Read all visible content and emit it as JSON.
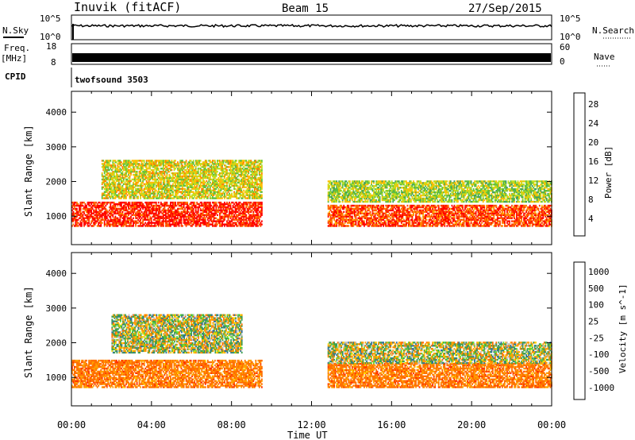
{
  "header": {
    "station": "Inuvik (fitACF)",
    "beam": "Beam 15",
    "date": "27/Sep/2015"
  },
  "top_panels": {
    "nsky_label": "N.Sky",
    "nsky_ticks": [
      "10^5",
      "10^0"
    ],
    "nsearch_label": "N.Search",
    "nsearch_ticks": [
      "10^5",
      "10^0"
    ],
    "freq_label": "Freq.",
    "freq_unit": "[MHz]",
    "freq_ticks": [
      "18",
      "8"
    ],
    "nave_label": "Nave",
    "nave_ticks": [
      "60",
      "0"
    ],
    "cpid_label": "CPID",
    "cpid_value": "twofsound 3503"
  },
  "colors": {
    "power_scale": [
      "#1f1fff",
      "#2f3fbf",
      "#3f6f9f",
      "#3f9f5f",
      "#5fbf3f",
      "#bfdf1f",
      "#ffbf00",
      "#ff7f00",
      "#ff3f00",
      "#ff0000"
    ],
    "velocity_scale": [
      "#1f3fbf",
      "#2f6f9f",
      "#3f9f4f",
      "#5fdf2f",
      "#bfbfbf",
      "#ffdf00",
      "#ffa000",
      "#ff7000",
      "#ff3000",
      "#ff0000"
    ]
  },
  "chart_data": [
    {
      "type": "heatmap",
      "name": "Power",
      "xlabel": "",
      "ylabel": "Slant Range [km]",
      "xlim": [
        0,
        24
      ],
      "ylim": [
        180,
        4600
      ],
      "yticks": [
        1000,
        2000,
        3000,
        4000
      ],
      "colorbar": {
        "label": "Power [dB]",
        "ticks": [
          "4",
          "8",
          "12",
          "16",
          "20",
          "24",
          "28"
        ],
        "range": [
          0,
          30
        ]
      },
      "echo_bands_hours_km": [
        {
          "start": 0.0,
          "end": 9.5,
          "range": [
            700,
            1400
          ],
          "value": 26
        },
        {
          "start": 1.5,
          "end": 9.5,
          "range": [
            1500,
            2600
          ],
          "value": 16
        },
        {
          "start": 12.8,
          "end": 24.0,
          "range": [
            700,
            1300
          ],
          "value": 24
        },
        {
          "start": 12.8,
          "end": 24.0,
          "range": [
            1400,
            2000
          ],
          "value": 14
        }
      ]
    },
    {
      "type": "heatmap",
      "name": "Velocity",
      "xlabel": "Time UT",
      "ylabel": "Slant Range [km]",
      "xlim": [
        0,
        24
      ],
      "ylim": [
        180,
        4600
      ],
      "xticks": [
        "00:00",
        "04:00",
        "08:00",
        "12:00",
        "16:00",
        "20:00",
        "00:00"
      ],
      "yticks": [
        1000,
        2000,
        3000,
        4000
      ],
      "colorbar": {
        "label": "Velocity [m s^-1]",
        "ticks": [
          "1000",
          "500",
          "100",
          "25",
          "-25",
          "-100",
          "-500",
          "-1000"
        ]
      },
      "echo_bands_hours_km": [
        {
          "start": 0.0,
          "end": 9.5,
          "range": [
            700,
            1500
          ],
          "value": -300
        },
        {
          "start": 2.0,
          "end": 8.5,
          "range": [
            1700,
            2800
          ],
          "value": 0
        },
        {
          "start": 12.8,
          "end": 24.0,
          "range": [
            700,
            1400
          ],
          "value": -300
        },
        {
          "start": 12.8,
          "end": 24.0,
          "range": [
            1400,
            2000
          ],
          "value": 0
        }
      ]
    }
  ]
}
